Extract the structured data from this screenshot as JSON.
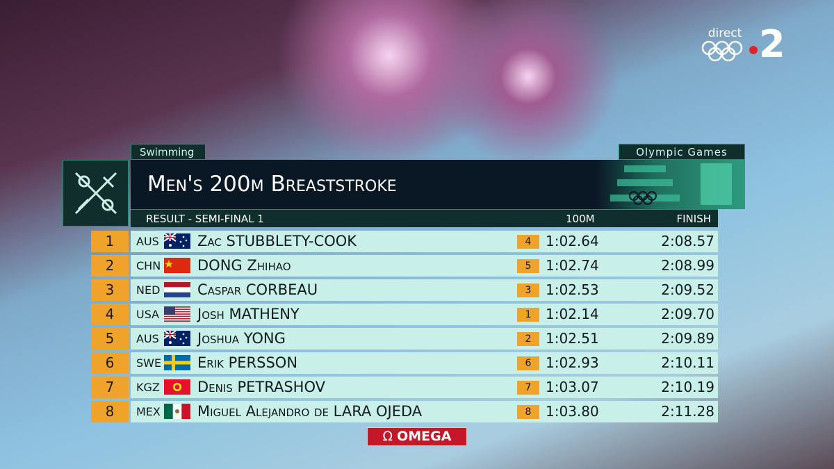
{
  "header": {
    "sport": "Swimming",
    "brand": "Olympic Games",
    "title": "Men's 200m Breaststroke",
    "subtitle": "Result - Semi-Final 1"
  },
  "table": {
    "columns": [
      "100m",
      "Finish"
    ],
    "rows": [
      [
        "1",
        "AUS",
        "Zac STUBBLETY-COOK",
        "4",
        "1:02.64",
        "2:08.57"
      ],
      [
        "2",
        "CHN",
        "DONG Zhihao",
        "5",
        "1:02.74",
        "2:08.99"
      ],
      [
        "3",
        "NED",
        "Caspar CORBEAU",
        "3",
        "1:02.53",
        "2:09.52"
      ],
      [
        "4",
        "USA",
        "Josh MATHENY",
        "1",
        "1:02.14",
        "2:09.70"
      ],
      [
        "5",
        "AUS",
        "Joshua YONG",
        "2",
        "1:02.51",
        "2:09.89"
      ],
      [
        "6",
        "SWE",
        "Erik PERSSON",
        "6",
        "1:02.93",
        "2:10.11"
      ],
      [
        "7",
        "KGZ",
        "Denis PETRASHOV",
        "7",
        "1:03.07",
        "2:10.19"
      ],
      [
        "8",
        "MEX",
        "Miguel Alejandro de LARA OJEDA",
        "8",
        "1:03.80",
        "2:11.28"
      ]
    ]
  },
  "sponsor": "Omega",
  "channel": {
    "live": "direct",
    "number": "2"
  }
}
